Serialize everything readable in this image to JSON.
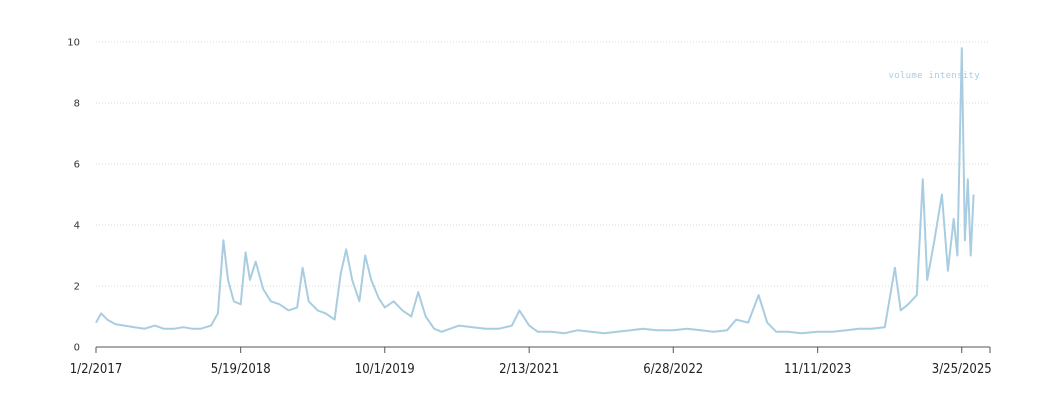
{
  "chart_data": {
    "type": "line",
    "title": "",
    "xlabel": "",
    "ylabel": "",
    "ylim": [
      0,
      10
    ],
    "yticks": [
      0,
      2,
      4,
      6,
      8,
      10
    ],
    "xlim": [
      "2017-01-02",
      "2025-07-01"
    ],
    "xtick_labels": [
      "1/2/2017",
      "5/19/2018",
      "10/1/2019",
      "2/13/2021",
      "6/28/2022",
      "11/11/2023",
      "3/25/2025"
    ],
    "xtick_dates": [
      "2017-01-02",
      "2018-05-19",
      "2019-10-01",
      "2021-02-13",
      "2022-06-28",
      "2023-11-11",
      "2025-03-25"
    ],
    "grid": true,
    "line_color": "#a9cde0",
    "series": [
      {
        "name": "volume intensity",
        "points": [
          [
            "2017-01-02",
            0.8
          ],
          [
            "2017-01-20",
            1.1
          ],
          [
            "2017-02-10",
            0.9
          ],
          [
            "2017-03-10",
            0.75
          ],
          [
            "2017-04-10",
            0.7
          ],
          [
            "2017-05-15",
            0.65
          ],
          [
            "2017-06-20",
            0.6
          ],
          [
            "2017-07-25",
            0.7
          ],
          [
            "2017-08-25",
            0.6
          ],
          [
            "2017-10-01",
            0.6
          ],
          [
            "2017-11-01",
            0.65
          ],
          [
            "2017-12-01",
            0.6
          ],
          [
            "2018-01-01",
            0.6
          ],
          [
            "2018-02-05",
            0.7
          ],
          [
            "2018-03-01",
            1.1
          ],
          [
            "2018-03-20",
            3.5
          ],
          [
            "2018-04-05",
            2.2
          ],
          [
            "2018-04-25",
            1.5
          ],
          [
            "2018-05-19",
            1.4
          ],
          [
            "2018-06-05",
            3.1
          ],
          [
            "2018-06-20",
            2.2
          ],
          [
            "2018-07-10",
            2.8
          ],
          [
            "2018-08-05",
            1.9
          ],
          [
            "2018-09-01",
            1.5
          ],
          [
            "2018-10-01",
            1.4
          ],
          [
            "2018-11-01",
            1.2
          ],
          [
            "2018-12-01",
            1.3
          ],
          [
            "2018-12-20",
            2.6
          ],
          [
            "2019-01-10",
            1.5
          ],
          [
            "2019-02-10",
            1.2
          ],
          [
            "2019-03-10",
            1.1
          ],
          [
            "2019-04-10",
            0.9
          ],
          [
            "2019-05-01",
            2.4
          ],
          [
            "2019-05-20",
            3.2
          ],
          [
            "2019-06-10",
            2.2
          ],
          [
            "2019-07-05",
            1.5
          ],
          [
            "2019-07-25",
            3.0
          ],
          [
            "2019-08-15",
            2.2
          ],
          [
            "2019-09-10",
            1.6
          ],
          [
            "2019-10-01",
            1.3
          ],
          [
            "2019-11-01",
            1.5
          ],
          [
            "2019-12-01",
            1.2
          ],
          [
            "2020-01-01",
            1.0
          ],
          [
            "2020-01-25",
            1.8
          ],
          [
            "2020-02-20",
            1.0
          ],
          [
            "2020-03-20",
            0.6
          ],
          [
            "2020-04-15",
            0.5
          ],
          [
            "2020-05-15",
            0.6
          ],
          [
            "2020-06-15",
            0.7
          ],
          [
            "2020-08-01",
            0.65
          ],
          [
            "2020-09-15",
            0.6
          ],
          [
            "2020-11-01",
            0.6
          ],
          [
            "2020-12-15",
            0.7
          ],
          [
            "2021-01-10",
            1.2
          ],
          [
            "2021-02-13",
            0.7
          ],
          [
            "2021-03-15",
            0.5
          ],
          [
            "2021-05-01",
            0.5
          ],
          [
            "2021-06-15",
            0.45
          ],
          [
            "2021-08-01",
            0.55
          ],
          [
            "2021-09-15",
            0.5
          ],
          [
            "2021-11-01",
            0.45
          ],
          [
            "2021-12-15",
            0.5
          ],
          [
            "2022-02-01",
            0.55
          ],
          [
            "2022-03-15",
            0.6
          ],
          [
            "2022-05-01",
            0.55
          ],
          [
            "2022-06-28",
            0.55
          ],
          [
            "2022-08-15",
            0.6
          ],
          [
            "2022-10-01",
            0.55
          ],
          [
            "2022-11-15",
            0.5
          ],
          [
            "2023-01-01",
            0.55
          ],
          [
            "2023-02-01",
            0.9
          ],
          [
            "2023-03-15",
            0.8
          ],
          [
            "2023-04-20",
            1.7
          ],
          [
            "2023-05-20",
            0.8
          ],
          [
            "2023-06-20",
            0.5
          ],
          [
            "2023-08-01",
            0.5
          ],
          [
            "2023-09-15",
            0.45
          ],
          [
            "2023-11-11",
            0.5
          ],
          [
            "2024-01-01",
            0.5
          ],
          [
            "2024-02-20",
            0.55
          ],
          [
            "2024-04-01",
            0.6
          ],
          [
            "2024-05-15",
            0.6
          ],
          [
            "2024-07-01",
            0.65
          ],
          [
            "2024-08-05",
            2.6
          ],
          [
            "2024-08-25",
            1.2
          ],
          [
            "2024-09-20",
            1.4
          ],
          [
            "2024-10-20",
            1.7
          ],
          [
            "2024-11-10",
            5.5
          ],
          [
            "2024-11-25",
            2.2
          ],
          [
            "2024-12-20",
            3.5
          ],
          [
            "2025-01-15",
            5.0
          ],
          [
            "2025-02-05",
            2.5
          ],
          [
            "2025-02-25",
            4.2
          ],
          [
            "2025-03-10",
            3.0
          ],
          [
            "2025-03-25",
            9.8
          ],
          [
            "2025-04-05",
            3.5
          ],
          [
            "2025-04-15",
            5.5
          ],
          [
            "2025-04-25",
            3.0
          ],
          [
            "2025-05-05",
            5.0
          ]
        ]
      }
    ]
  }
}
